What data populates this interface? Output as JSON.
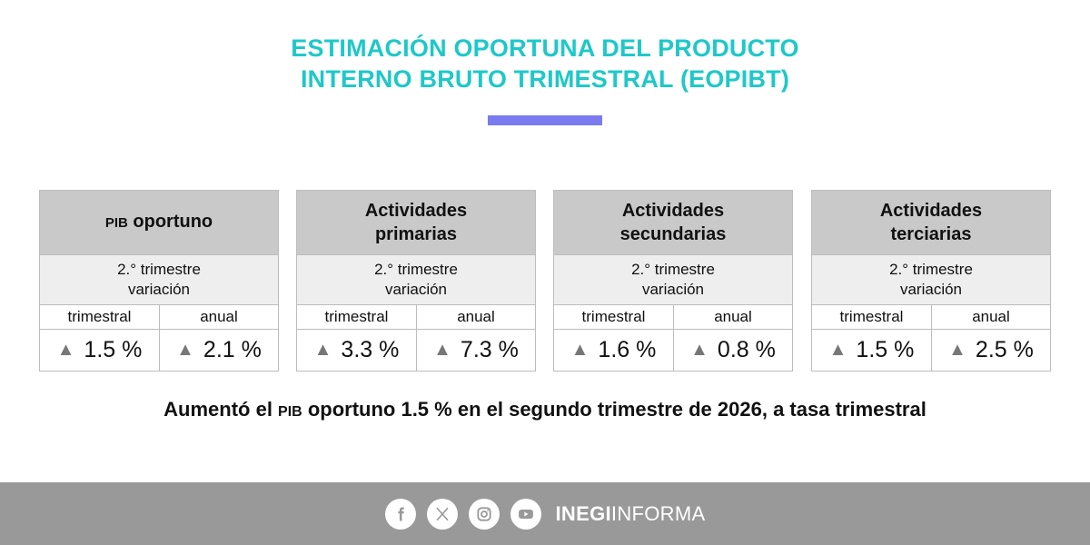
{
  "header": {
    "title_line1": "ESTIMACIÓN OPORTUNA DEL PRODUCTO",
    "title_line2": "INTERNO BRUTO TRIMESTRAL (EOPIBT)"
  },
  "colors": {
    "title": "#1ec8c8",
    "accent_bar": "#7b7bf0",
    "card_header_bg": "#c9c9c9",
    "card_sub_bg": "#eeeeee",
    "footer_bg": "#999999",
    "arrow": "#777777"
  },
  "cards": [
    {
      "title_prefix": "PIB",
      "title_line1": "oportuno",
      "title_line2": "",
      "period": "2.° trimestre",
      "period_sub": "variación",
      "col1_label": "trimestral",
      "col2_label": "anual",
      "col1_value": "1.5 %",
      "col2_value": "2.1 %",
      "col1_trend": "up",
      "col2_trend": "up"
    },
    {
      "title_prefix": "",
      "title_line1": "Actividades",
      "title_line2": "primarias",
      "period": "2.° trimestre",
      "period_sub": "variación",
      "col1_label": "trimestral",
      "col2_label": "anual",
      "col1_value": "3.3 %",
      "col2_value": "7.3 %",
      "col1_trend": "up",
      "col2_trend": "up"
    },
    {
      "title_prefix": "",
      "title_line1": "Actividades",
      "title_line2": "secundarias",
      "period": "2.° trimestre",
      "period_sub": "variación",
      "col1_label": "trimestral",
      "col2_label": "anual",
      "col1_value": "1.6 %",
      "col2_value": "0.8 %",
      "col1_trend": "up",
      "col2_trend": "up"
    },
    {
      "title_prefix": "",
      "title_line1": "Actividades",
      "title_line2": "terciarias",
      "period": "2.° trimestre",
      "period_sub": "variación",
      "col1_label": "trimestral",
      "col2_label": "anual",
      "col1_value": "1.5 %",
      "col2_value": "2.5 %",
      "col1_trend": "up",
      "col2_trend": "up"
    }
  ],
  "headline": {
    "part1": "Aumentó el ",
    "pib": "PIB",
    "part2": " oportuno 1.5 % en el segundo trimestre de 2026, a tasa trimestral"
  },
  "footer": {
    "icons": [
      "facebook-icon",
      "x-icon",
      "instagram-icon",
      "youtube-icon"
    ],
    "brand_bold": "INEGI",
    "brand_light": "INFORMA"
  }
}
